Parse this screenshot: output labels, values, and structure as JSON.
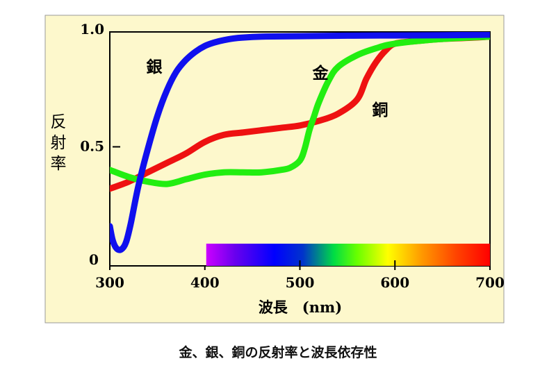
{
  "chart_data": {
    "type": "line",
    "title": "",
    "xlabel": "波長　(nm)",
    "ylabel": "反射率",
    "xlim": [
      300,
      700
    ],
    "ylim": [
      0,
      1.0
    ],
    "xticks": [
      300,
      400,
      500,
      600,
      700
    ],
    "xtick_labels": [
      "300",
      "400",
      "500",
      "600",
      "700"
    ],
    "yticks": [
      0,
      0.5,
      1.0
    ],
    "ytick_labels": [
      "0",
      "0.5",
      "1.0"
    ],
    "grid": false,
    "background": "#fdf8cc",
    "spectrum_bar": {
      "x_range": [
        400,
        700
      ]
    },
    "series": [
      {
        "name": "銀",
        "color": "#1010ee",
        "x": [
          300,
          303,
          307,
          312,
          317,
          322,
          330,
          340,
          350,
          360,
          370,
          380,
          390,
          400,
          410,
          420,
          430,
          440,
          460,
          500,
          550,
          600,
          650,
          700
        ],
        "y": [
          0.17,
          0.11,
          0.075,
          0.07,
          0.1,
          0.18,
          0.34,
          0.5,
          0.64,
          0.75,
          0.83,
          0.88,
          0.915,
          0.94,
          0.955,
          0.965,
          0.972,
          0.976,
          0.98,
          0.982,
          0.984,
          0.985,
          0.986,
          0.988
        ]
      },
      {
        "name": "金",
        "color": "#22ee11",
        "x": [
          300,
          320,
          340,
          360,
          380,
          400,
          420,
          440,
          460,
          480,
          490,
          500,
          505,
          510,
          515,
          520,
          530,
          540,
          560,
          580,
          600,
          650,
          700
        ],
        "y": [
          0.41,
          0.38,
          0.36,
          0.35,
          0.37,
          0.39,
          0.4,
          0.4,
          0.4,
          0.41,
          0.42,
          0.45,
          0.5,
          0.58,
          0.64,
          0.7,
          0.79,
          0.85,
          0.9,
          0.93,
          0.95,
          0.97,
          0.98
        ]
      },
      {
        "name": "銅",
        "color": "#ee1111",
        "x": [
          300,
          320,
          340,
          360,
          380,
          400,
          420,
          440,
          460,
          480,
          500,
          520,
          540,
          560,
          570,
          580,
          590,
          600,
          620,
          650,
          680,
          700
        ],
        "y": [
          0.33,
          0.36,
          0.4,
          0.44,
          0.48,
          0.53,
          0.56,
          0.57,
          0.58,
          0.59,
          0.6,
          0.62,
          0.65,
          0.71,
          0.8,
          0.87,
          0.92,
          0.95,
          0.96,
          0.97,
          0.975,
          0.98
        ]
      }
    ]
  },
  "caption": "金、銀、銅の反射率と波長依存性"
}
